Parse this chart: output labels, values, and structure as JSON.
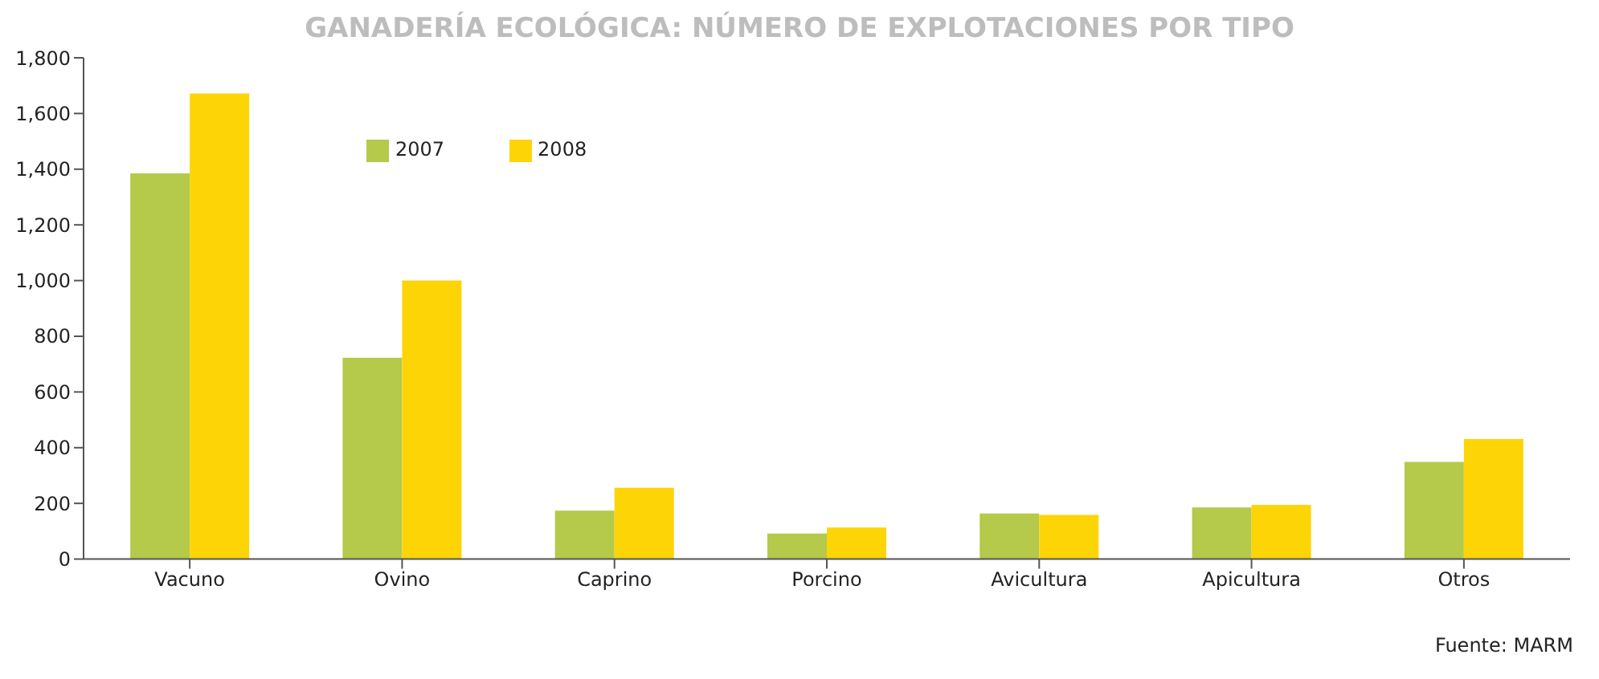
{
  "chart_data": {
    "type": "bar",
    "title": "GANADERÍA ECOLÓGICA: NÚMERO DE EXPLOTACIONES POR TIPO",
    "categories": [
      "Vacuno",
      "Ovino",
      "Caprino",
      "Porcino",
      "Avicultura",
      "Apicultura",
      "Otros"
    ],
    "series": [
      {
        "name": "2007",
        "color": "#b5c94a",
        "values": [
          1385,
          723,
          174,
          92,
          164,
          185,
          349
        ]
      },
      {
        "name": "2008",
        "color": "#fdd406",
        "values": [
          1672,
          1000,
          256,
          113,
          159,
          195,
          431
        ]
      }
    ],
    "ylim": [
      0,
      1800
    ],
    "yticks": [
      0,
      200,
      400,
      600,
      800,
      {
        "value": 1000,
        "label": "1,000"
      },
      {
        "value": 1200,
        "label": "1,200"
      },
      {
        "value": 1400,
        "label": "1,400"
      },
      {
        "value": 1600,
        "label": "1,600"
      },
      {
        "value": 1800,
        "label": "1,800"
      }
    ],
    "grid": false,
    "legend": "top left",
    "annotations": [
      "Fuente: MARM"
    ]
  }
}
